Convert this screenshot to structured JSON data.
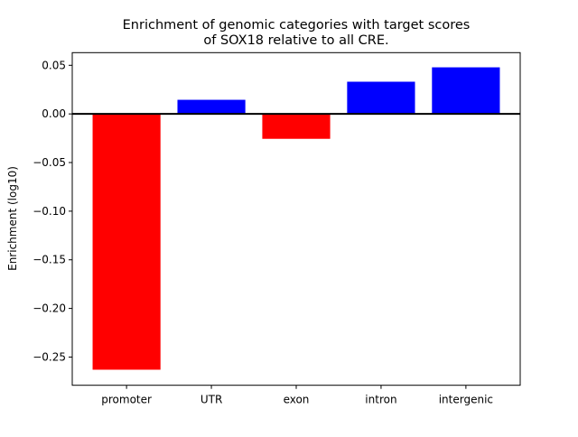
{
  "chart_data": {
    "type": "bar",
    "title": [
      "Enrichment of genomic categories with target scores",
      "of SOX18 relative to all CRE."
    ],
    "xlabel": "",
    "ylabel": "Enrichment (log10)",
    "categories": [
      "promoter",
      "UTR",
      "exon",
      "intron",
      "intergenic"
    ],
    "values": [
      -0.263,
      0.0145,
      -0.0256,
      0.0331,
      0.0479
    ],
    "colors": [
      "#ff0000",
      "#0000ff",
      "#ff0000",
      "#0000ff",
      "#0000ff"
    ],
    "ylim": [
      -0.279,
      0.063
    ],
    "xlim": [
      -0.64,
      4.64
    ],
    "yticks": [
      0.05,
      0.0,
      -0.05,
      -0.1,
      -0.15,
      -0.2,
      -0.25
    ],
    "ytick_labels": [
      "0.05",
      "0.00",
      "−0.05",
      "−0.10",
      "−0.15",
      "−0.20",
      "−0.25"
    ],
    "zero_line": true,
    "grid": false,
    "legend": "none"
  }
}
